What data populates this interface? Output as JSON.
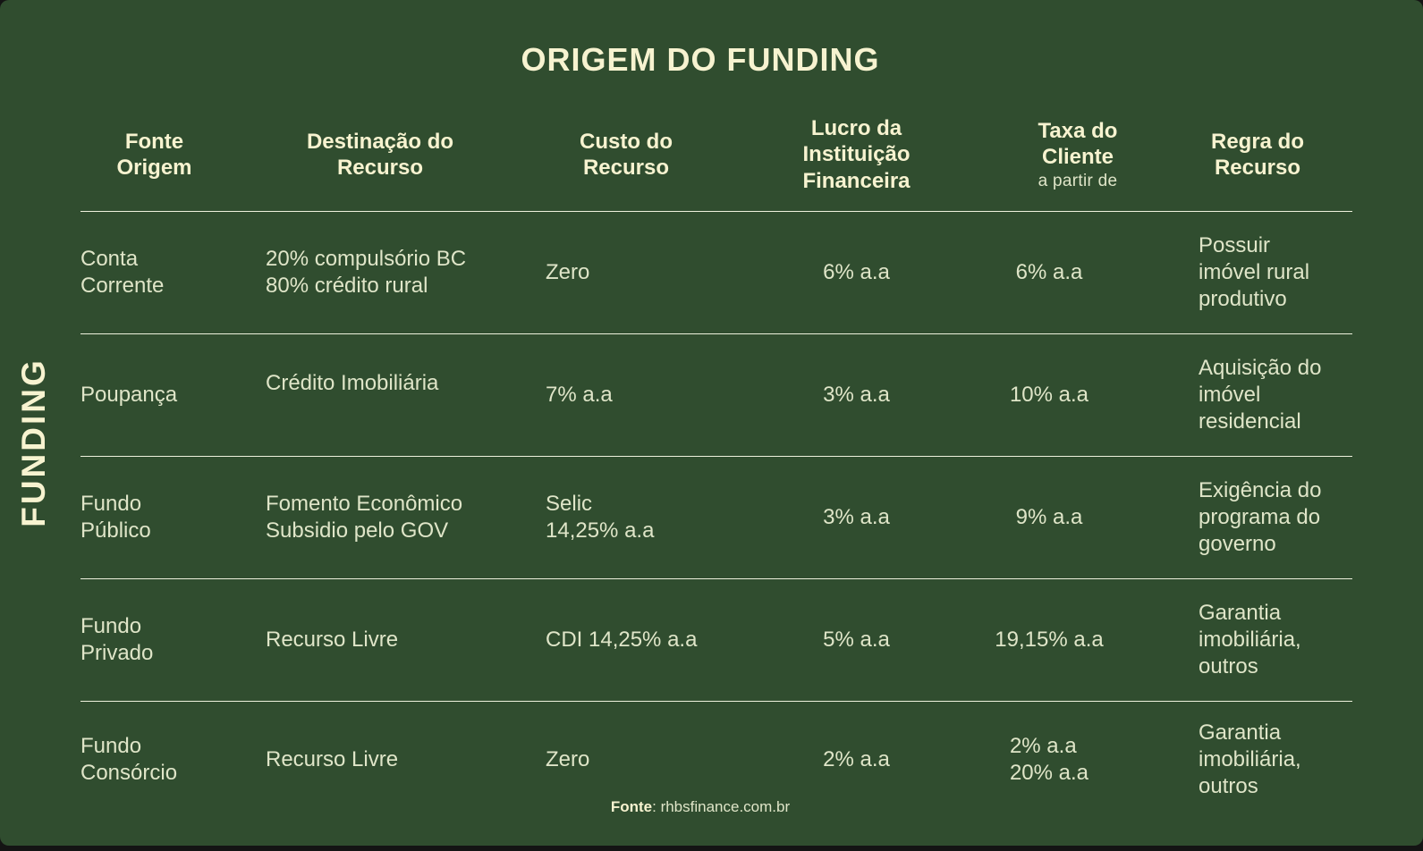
{
  "colors": {
    "background": "#304d2f",
    "heading": "#f7f3d0",
    "body": "#dfe5c8",
    "line": "#eef1dd",
    "outer": "#141414"
  },
  "chart_data": {
    "type": "table",
    "title": "ORIGEM DO FUNDING",
    "side_label": "FUNDING",
    "columns": [
      {
        "label": "Fonte\nOrigem"
      },
      {
        "label": "Destinação do\nRecurso"
      },
      {
        "label": "Custo do\nRecurso"
      },
      {
        "label": "Lucro da\nInstituição\nFinanceira"
      },
      {
        "label": "Taxa do\nCliente",
        "sublabel": "a partir de"
      },
      {
        "label": "Regra do\nRecurso"
      }
    ],
    "rows": [
      {
        "cells": [
          "Conta\nCorrente",
          "20% compulsório BC\n80% crédito rural",
          "Zero",
          "6% a.a",
          "6% a.a",
          "Possuir\nimóvel rural\nprodutivo"
        ]
      },
      {
        "cells": [
          "Poupança",
          "Crédito Imobiliária",
          "7% a.a",
          "3% a.a",
          "10% a.a",
          "Aquisição do\nimóvel\nresidencial"
        ]
      },
      {
        "cells": [
          "Fundo\nPúblico",
          "Fomento Econômico\nSubsidio pelo GOV",
          "Selic\n14,25% a.a",
          "3% a.a",
          "9% a.a",
          "Exigência do\nprograma do\ngoverno"
        ]
      },
      {
        "cells": [
          "Fundo\nPrivado",
          "Recurso Livre",
          "CDI 14,25% a.a",
          "5% a.a",
          "19,15% a.a",
          "Garantia\nimobiliária,\noutros"
        ]
      },
      {
        "cells": [
          "Fundo\nConsórcio",
          "Recurso Livre",
          "Zero",
          "2% a.a",
          "2% a.a\n20% a.a",
          "Garantia\nimobiliária,\noutros"
        ]
      }
    ],
    "source_label": "Fonte",
    "source_rest": ": rhbsfinance.com.br"
  }
}
